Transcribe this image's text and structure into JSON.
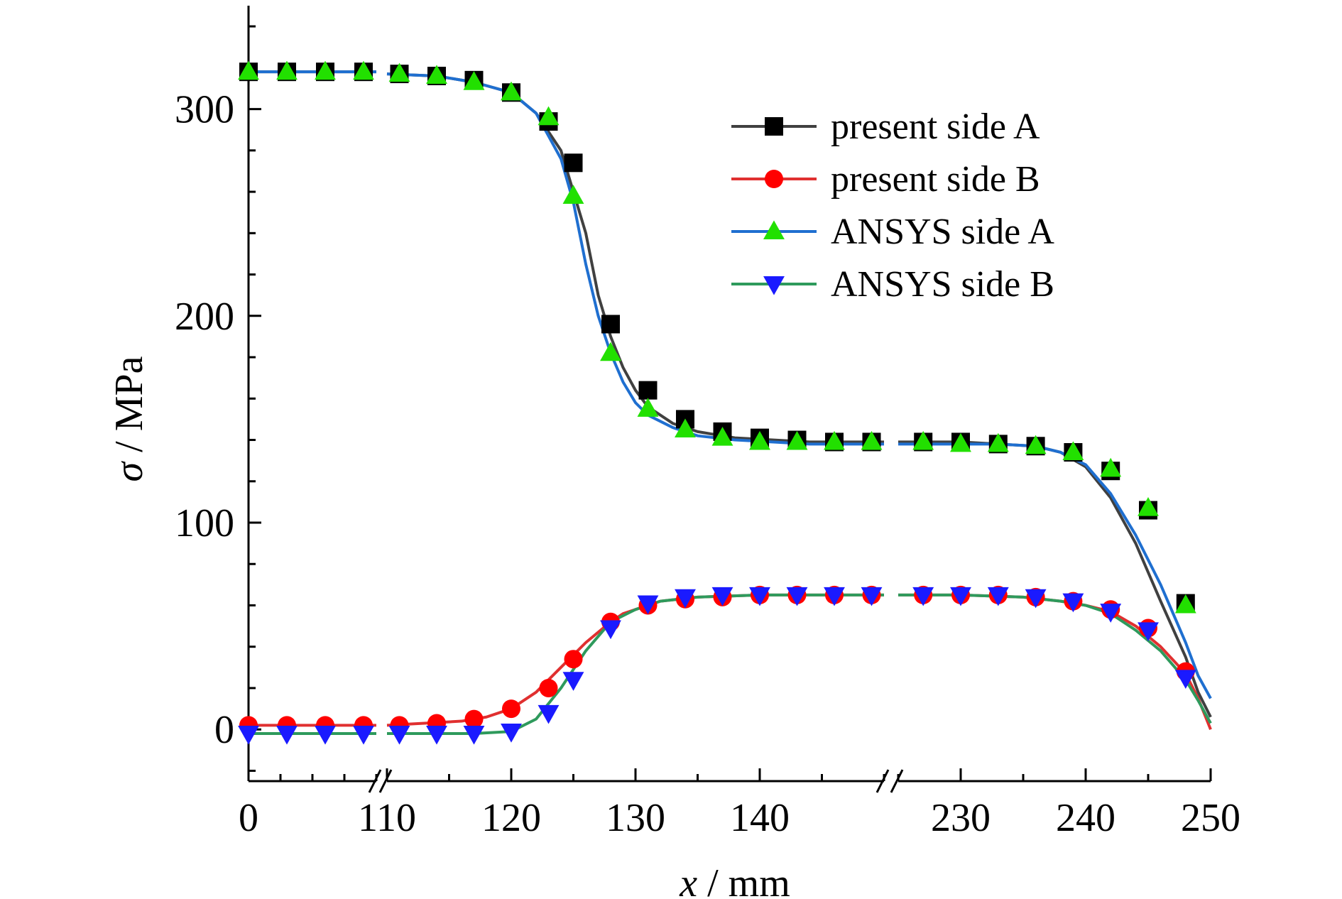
{
  "chart_data": {
    "type": "line",
    "xlabel": {
      "var": "x",
      "unit": " / mm"
    },
    "ylabel": {
      "var": "σ",
      "unit": " / MPa"
    },
    "ylim": [
      -25,
      350
    ],
    "yticks": [
      0,
      100,
      200,
      300
    ],
    "x_segments": [
      {
        "range": [
          0,
          10
        ],
        "ticks": [
          0
        ]
      },
      {
        "range": [
          110,
          150
        ],
        "ticks": [
          110,
          120,
          130,
          140
        ]
      },
      {
        "range": [
          225,
          250
        ],
        "ticks": [
          230,
          240,
          250
        ]
      }
    ],
    "legend_position": "top-right",
    "series": [
      {
        "name": "present side A",
        "color": "#404040",
        "marker": "square",
        "marker_color": "#000000",
        "x": [
          0,
          2,
          4,
          6,
          8,
          10,
          110,
          114,
          117,
          120,
          122,
          124,
          126,
          127,
          128,
          129,
          130,
          131,
          133,
          135,
          138,
          141,
          144,
          147,
          150,
          225,
          230,
          233,
          236,
          238,
          240,
          242,
          244,
          246,
          248,
          249,
          250
        ],
        "y": [
          318,
          318,
          318,
          318,
          318,
          318,
          317,
          316,
          313,
          308,
          298,
          280,
          240,
          210,
          190,
          175,
          164,
          156,
          148,
          144,
          141,
          140,
          139,
          139,
          139,
          139,
          139,
          138,
          137,
          134,
          127,
          112,
          90,
          62,
          35,
          18,
          6
        ],
        "mx": [
          0,
          3,
          6,
          9,
          111,
          114,
          117,
          120,
          123,
          125,
          128,
          131,
          134,
          137,
          140,
          143,
          146,
          149,
          227,
          230,
          233,
          236,
          239,
          242,
          245,
          248
        ],
        "my": [
          318,
          318,
          318,
          318,
          317,
          316,
          314,
          308,
          294,
          274,
          196,
          164,
          150,
          144,
          141,
          140,
          139,
          139,
          139,
          139,
          138,
          137,
          134,
          125,
          106,
          61
        ]
      },
      {
        "name": "present side B",
        "color": "#e03030",
        "marker": "circle",
        "marker_color": "#ff0000",
        "x": [
          0,
          2,
          4,
          6,
          8,
          10,
          110,
          113,
          116,
          118,
          120,
          122,
          124,
          126,
          128,
          129,
          130,
          132,
          135,
          140,
          145,
          150,
          225,
          230,
          235,
          238,
          240,
          242,
          244,
          246,
          248,
          249,
          250
        ],
        "y": [
          2,
          2,
          2,
          2,
          2,
          2,
          2,
          3,
          4,
          6,
          10,
          18,
          30,
          42,
          52,
          56,
          58,
          62,
          64,
          65,
          65,
          65,
          65,
          65,
          64,
          62,
          60,
          57,
          50,
          40,
          27,
          15,
          0
        ],
        "mx": [
          0,
          3,
          6,
          9,
          111,
          114,
          117,
          120,
          123,
          125,
          128,
          131,
          134,
          137,
          140,
          143,
          146,
          149,
          227,
          230,
          233,
          236,
          239,
          242,
          245,
          248
        ],
        "my": [
          2,
          2,
          2,
          2,
          2,
          3,
          5,
          10,
          20,
          34,
          52,
          60,
          63,
          64,
          65,
          65,
          65,
          65,
          65,
          65,
          65,
          64,
          62,
          58,
          49,
          28
        ]
      },
      {
        "name": "ANSYS side A",
        "color": "#1f6fd0",
        "marker": "triangle-up",
        "marker_color": "#22e000",
        "x": [
          0,
          2,
          4,
          6,
          8,
          10,
          110,
          114,
          117,
          120,
          122,
          124,
          125,
          126,
          127,
          128,
          129,
          130,
          131,
          133,
          135,
          138,
          141,
          144,
          147,
          150,
          225,
          230,
          233,
          236,
          238,
          240,
          242,
          244,
          246,
          248,
          249,
          250
        ],
        "y": [
          318,
          318,
          318,
          318,
          318,
          318,
          317,
          316,
          313,
          308,
          298,
          276,
          255,
          225,
          200,
          182,
          168,
          158,
          152,
          146,
          142,
          140,
          139,
          138,
          138,
          138,
          138,
          138,
          138,
          137,
          134,
          128,
          114,
          94,
          70,
          42,
          26,
          15
        ],
        "mx": [
          0,
          3,
          6,
          9,
          111,
          114,
          117,
          120,
          123,
          125,
          128,
          131,
          134,
          137,
          140,
          143,
          146,
          149,
          227,
          230,
          233,
          236,
          239,
          242,
          245,
          248
        ],
        "my": [
          318,
          318,
          318,
          318,
          317,
          316,
          313,
          308,
          296,
          258,
          182,
          155,
          145,
          141,
          139,
          139,
          139,
          139,
          139,
          138,
          138,
          137,
          134,
          126,
          107,
          60
        ]
      },
      {
        "name": "ANSYS side B",
        "color": "#2e9a5c",
        "marker": "triangle-down",
        "marker_color": "#1a1aff",
        "x": [
          0,
          2,
          4,
          6,
          8,
          10,
          110,
          114,
          117,
          120,
          122,
          124,
          126,
          128,
          130,
          132,
          135,
          140,
          145,
          150,
          225,
          230,
          235,
          238,
          240,
          242,
          244,
          246,
          248,
          249,
          250
        ],
        "y": [
          -2,
          -2,
          -2,
          -2,
          -2,
          -2,
          -2,
          -2,
          -2,
          -1,
          5,
          20,
          38,
          52,
          58,
          62,
          64,
          65,
          65,
          65,
          65,
          65,
          64,
          62,
          60,
          56,
          48,
          38,
          24,
          14,
          3
        ],
        "mx": [
          0,
          3,
          6,
          9,
          111,
          114,
          117,
          120,
          123,
          125,
          128,
          131,
          134,
          137,
          140,
          143,
          146,
          149,
          227,
          230,
          233,
          236,
          239,
          242,
          245,
          248
        ],
        "my": [
          -2,
          -2,
          -2,
          -2,
          -2,
          -2,
          -2,
          -1,
          8,
          24,
          49,
          61,
          64,
          65,
          65,
          65,
          65,
          65,
          65,
          65,
          65,
          64,
          62,
          57,
          48,
          25
        ]
      }
    ]
  }
}
